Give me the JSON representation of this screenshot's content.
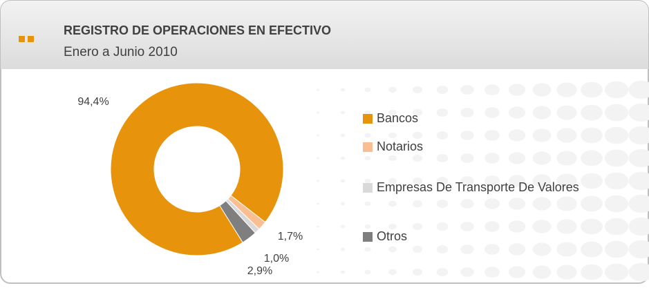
{
  "chart_data": {
    "type": "donut",
    "title": "REGISTRO DE OPERACIONES EN EFECTIVO",
    "subtitle": "Enero a Junio 2010",
    "categories": [
      "Bancos",
      "Notarios",
      "Empresas De Transporte De Valores",
      "Otros"
    ],
    "values": [
      94.4,
      1.7,
      1.0,
      2.9
    ],
    "value_labels": [
      "94,4%",
      "1,7%",
      "1,0%",
      "2,9%"
    ],
    "colors": [
      "#e8930c",
      "#f9bf92",
      "#d9d9d9",
      "#7f7f7f"
    ]
  }
}
